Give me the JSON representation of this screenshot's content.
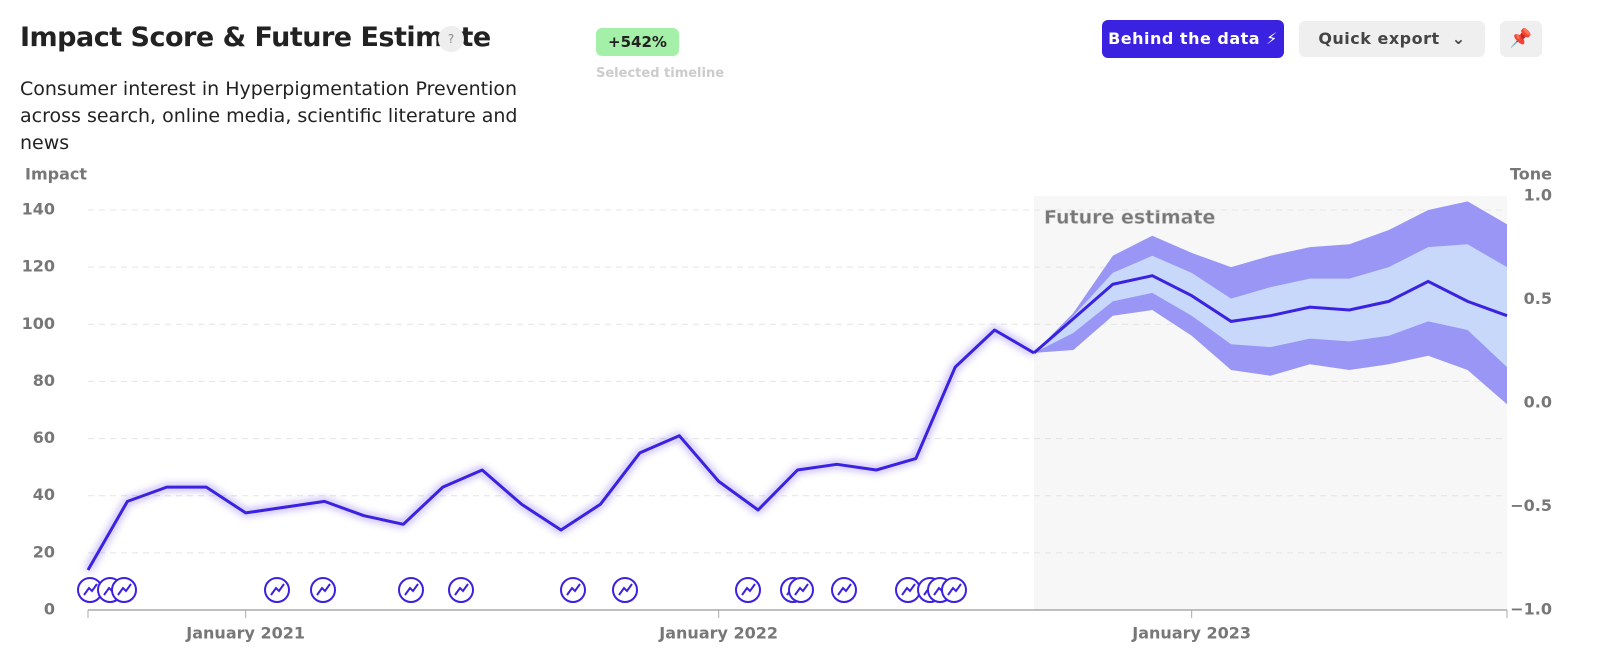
{
  "header": {
    "title": "Impact Score & Future Estimate",
    "help": "?",
    "badge": "+542%",
    "badge_caption": "Selected timeline",
    "subtitle": "Consumer interest in Hyperpigmentation Prevention across search, online media, scientific literature and news",
    "buttons": [
      "Behind the data",
      "Quick export"
    ]
  },
  "chart_data": {
    "type": "line",
    "y_label": "Impact",
    "y2_label": "Tone",
    "annotation": "Future estimate",
    "x": [
      "2020-09",
      "2020-10",
      "2020-11",
      "2020-12",
      "2021-01",
      "2021-02",
      "2021-03",
      "2021-04",
      "2021-05",
      "2021-06",
      "2021-07",
      "2021-08",
      "2021-09",
      "2021-10",
      "2021-11",
      "2021-12",
      "2022-01",
      "2022-02",
      "2022-03",
      "2022-04",
      "2022-05",
      "2022-06",
      "2022-07",
      "2022-08",
      "2022-09"
    ],
    "series": [
      {
        "color": "#3a22e0",
        "values": [
          14,
          38,
          43,
          43,
          34,
          36,
          38,
          33,
          30,
          43,
          49,
          37,
          28,
          37,
          55,
          61,
          45,
          35,
          49,
          51,
          49,
          53,
          85,
          98,
          90
        ]
      }
    ],
    "forecast": {
      "x": [
        "2022-09",
        "2022-10",
        "2022-11",
        "2022-12",
        "2023-01",
        "2023-02",
        "2023-03",
        "2023-04",
        "2023-05",
        "2023-06",
        "2023-07",
        "2023-08",
        "2023-09"
      ],
      "color": "#3a22e0",
      "values": [
        90,
        102,
        114,
        117,
        110,
        101,
        103,
        106,
        105,
        108,
        115,
        108,
        103
      ],
      "band_inner": {
        "color": "#c8d8fb",
        "upper": [
          90,
          103,
          118,
          124,
          118,
          109,
          113,
          116,
          116,
          120,
          127,
          128,
          120
        ],
        "lower": [
          90,
          97,
          108,
          111,
          103,
          93,
          92,
          95,
          94,
          96,
          101,
          98,
          85
        ]
      },
      "band_outer": {
        "color": "#9a96f5",
        "upper": [
          90,
          104,
          124,
          131,
          125,
          120,
          124,
          127,
          128,
          133,
          140,
          143,
          135
        ],
        "lower": [
          90,
          91,
          103,
          105,
          96,
          84,
          82,
          86,
          84,
          86,
          89,
          84,
          72
        ]
      }
    },
    "xlim": [
      "2020-09",
      "2023-09"
    ],
    "xticks": [
      {
        "value": "2021-01",
        "label": "January 2021"
      },
      {
        "value": "2022-01",
        "label": "January 2022"
      },
      {
        "value": "2023-01",
        "label": "January 2023"
      }
    ],
    "ylim": [
      0,
      140
    ],
    "yticks": [
      0,
      20,
      40,
      60,
      80,
      100,
      120,
      140
    ],
    "y2lim": [
      -1,
      1
    ],
    "y2ticks": [
      {
        "value": -1,
        "label": "−1.0"
      },
      {
        "value": -0.5,
        "label": "−0.5"
      },
      {
        "value": 0,
        "label": "0.0"
      },
      {
        "value": 0.5,
        "label": "0.5"
      },
      {
        "value": 1,
        "label": "1.0"
      }
    ],
    "grid": true
  }
}
